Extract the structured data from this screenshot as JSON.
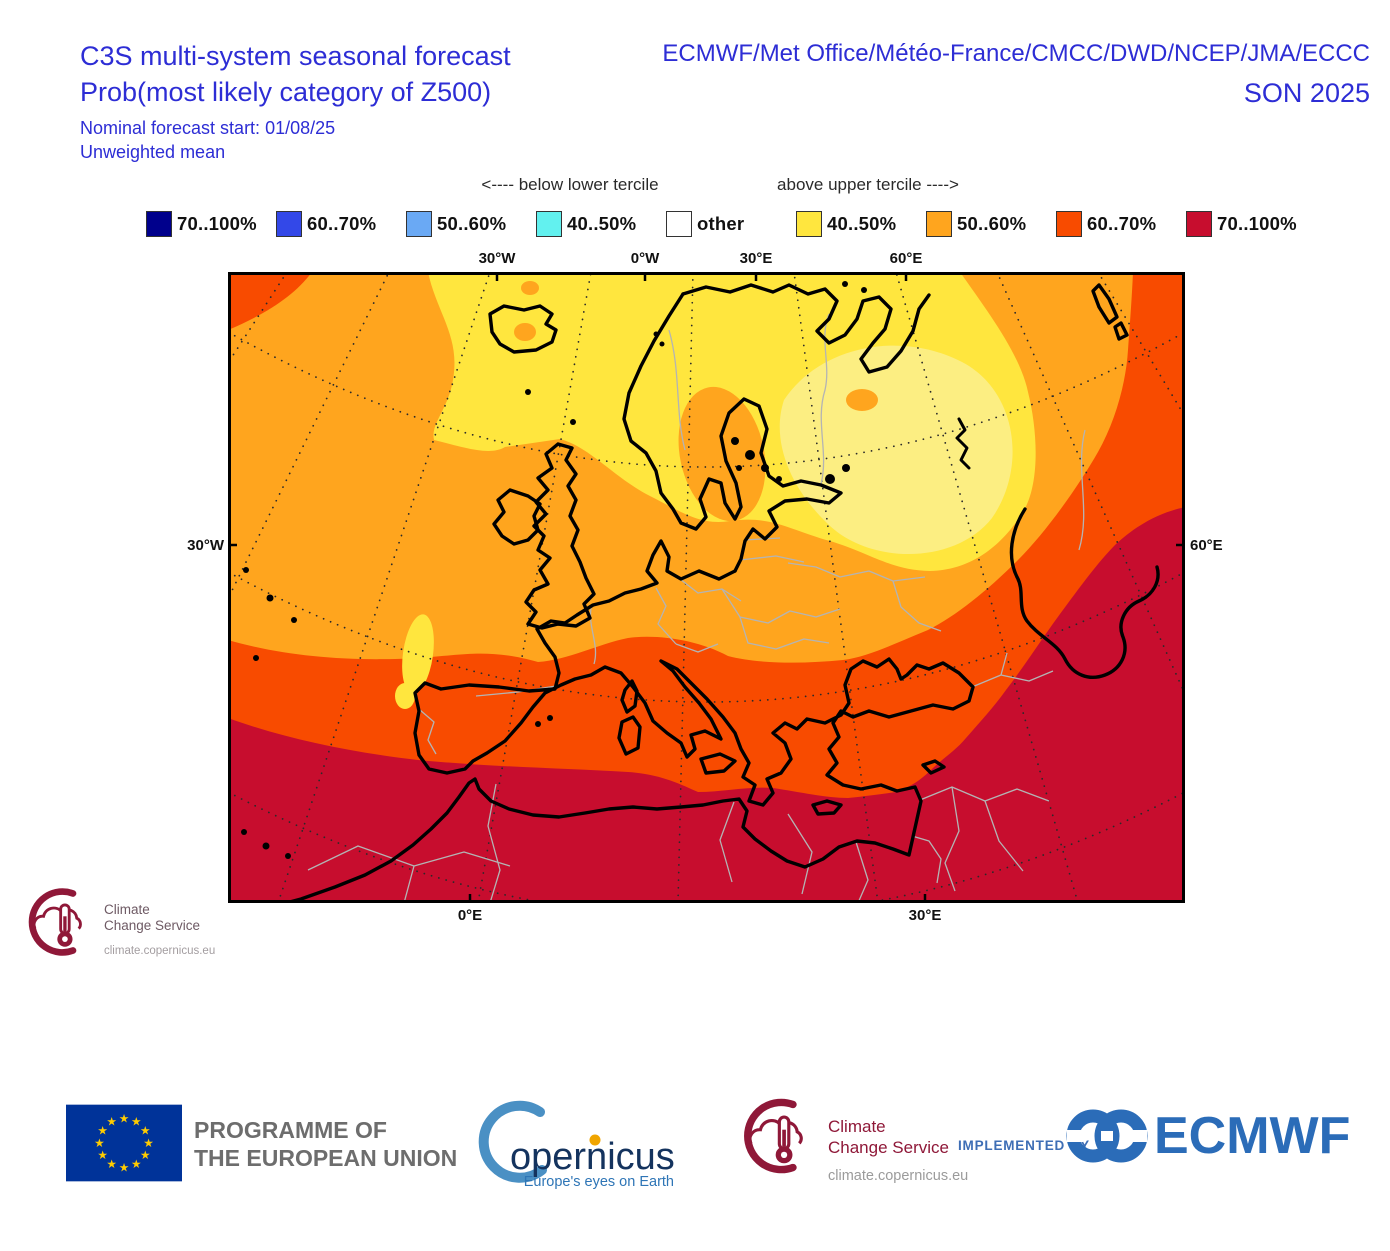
{
  "header": {
    "title_line1": "C3S multi-system seasonal forecast",
    "title_line2": "Prob(most likely category of Z500)",
    "subtitle_line1": "Nominal forecast start: 01/08/25",
    "subtitle_line2": "Unweighted mean",
    "right_line1": "ECMWF/Met Office/Météo-France/CMCC/DWD/NCEP/JMA/ECCC",
    "right_line2": "SON 2025"
  },
  "legend": {
    "below_label": "<---- below lower tercile",
    "above_label": "above upper tercile ---->",
    "groups": [
      {
        "name": "below",
        "items": [
          {
            "color": "#00008c",
            "label": "70..100%"
          },
          {
            "color": "#3348e8",
            "label": "60..70%"
          },
          {
            "color": "#6aa9f4",
            "label": "50..60%"
          },
          {
            "color": "#62f1ef",
            "label": "40..50%"
          },
          {
            "color": "#ffffff",
            "label": "other"
          }
        ]
      },
      {
        "name": "above",
        "items": [
          {
            "color": "#ffe63e",
            "label": "40..50%"
          },
          {
            "color": "#ffa51e",
            "label": "50..60%"
          },
          {
            "color": "#f84b00",
            "label": "60..70%"
          },
          {
            "color": "#c70d2e",
            "label": "70..100%"
          }
        ]
      }
    ]
  },
  "map": {
    "axis": {
      "top": [
        "30°W",
        "0°W",
        "30°E",
        "60°E"
      ],
      "left": "30°W",
      "right": "60°E",
      "bottom": [
        "0°E",
        "30°E"
      ]
    },
    "regions": [
      {
        "area": "North Atlantic / Scandinavia / NW Russia",
        "category": "above upper tercile 40..50%"
      },
      {
        "area": "Central Europe and mid-latitude Atlantic",
        "category": "above upper tercile 50..60%"
      },
      {
        "area": "Iberia, Mediterranean, Turkey",
        "category": "above upper tercile 60..70%"
      },
      {
        "area": "North Africa, Middle East, Caspian / SE corner",
        "category": "above upper tercile 70..100%"
      }
    ]
  },
  "colors": {
    "title_blue": "#2d2dd5",
    "above_40_50": "#ffe63e",
    "above_50_60": "#ffa51e",
    "above_60_70": "#f84b00",
    "above_70_100": "#c70d2e",
    "pale_yellow": "#fcee82",
    "below_70_100": "#00008c",
    "below_60_70": "#3348e8",
    "below_50_60": "#6aa9f4",
    "below_40_50": "#62f1ef",
    "other": "#ffffff",
    "ccs_red": "#8f1838",
    "eu_blue": "#003399",
    "eu_star_yellow": "#ffcc00",
    "ecmwf_blue": "#2b6cb8"
  },
  "corner_logo": {
    "line1": "Climate",
    "line2": "Change Service",
    "url": "climate.copernicus.eu"
  },
  "footer": {
    "eu_label_line1": "PROGRAMME OF",
    "eu_label_line2": "THE EUROPEAN UNION",
    "copernicus_word": "opernicus",
    "copernicus_tagline": "Europe's eyes on Earth",
    "ccs": {
      "line1": "Climate",
      "line2": "Change Service",
      "url": "climate.copernicus.eu"
    },
    "implemented_by": "IMPLEMENTED BY",
    "ecmwf": "ECMWF"
  }
}
